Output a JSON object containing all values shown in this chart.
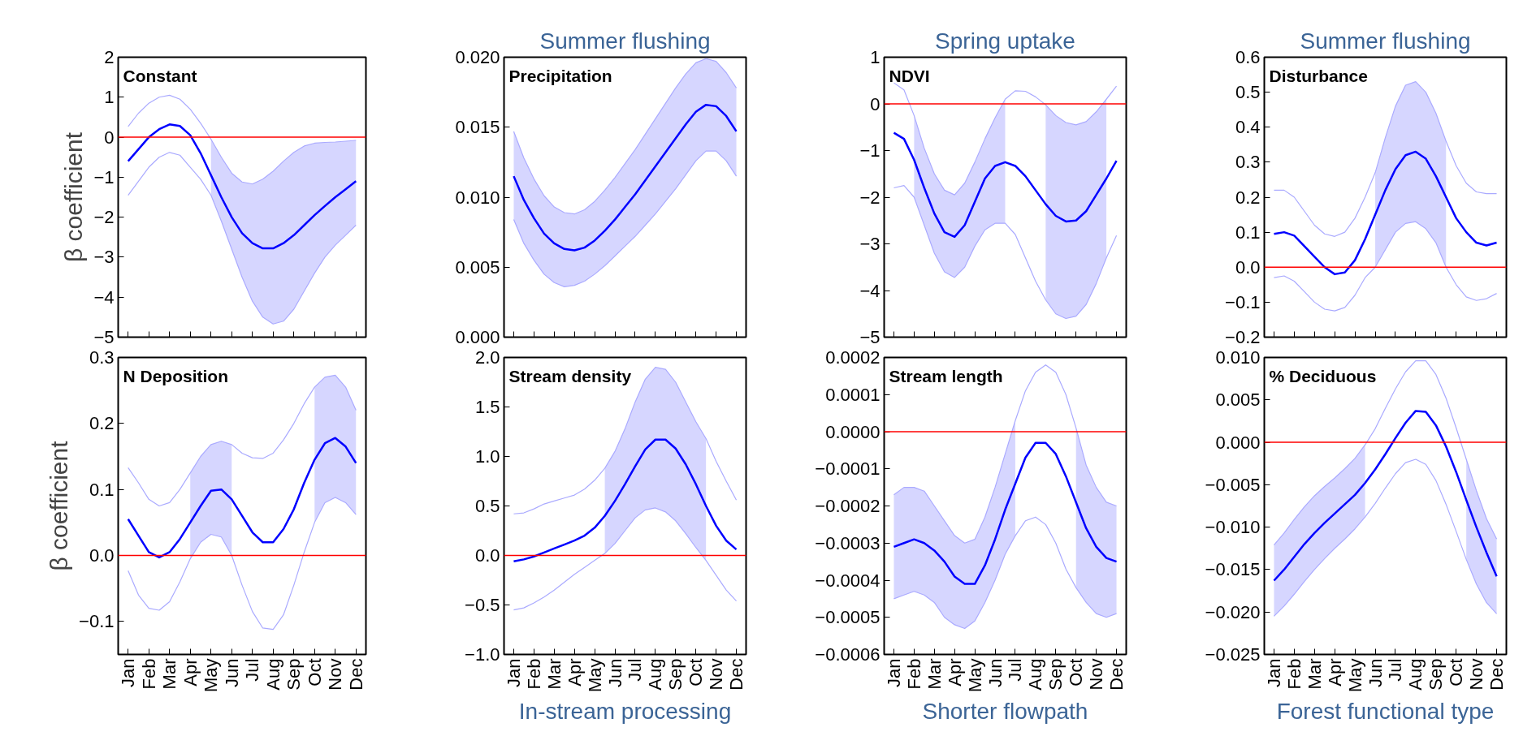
{
  "chart_data": [
    {
      "type": "line",
      "title": "Constant",
      "ylabel": "β coefficient",
      "tick_labels": "y",
      "grid": false,
      "categories": [
        null,
        null,
        null,
        null,
        null,
        null,
        null,
        null,
        null,
        null,
        null,
        null,
        null,
        null,
        null,
        null,
        null,
        null,
        null,
        null,
        null,
        null,
        null
      ],
      "ylim": [
        -5,
        2
      ],
      "yticks": [
        {
          "value": -5,
          "label": "−5"
        },
        {
          "value": -4,
          "label": "−4"
        },
        {
          "value": -3,
          "label": "−3"
        },
        {
          "value": -2,
          "label": "−2"
        },
        {
          "value": -1,
          "label": "−1"
        },
        0,
        1,
        2
      ],
      "series": [
        {
          "color": "#aaaaff",
          "values": [
            0.27,
            0.6,
            0.85,
            1.0,
            1.05,
            0.95,
            0.7,
            0.35,
            -0.05,
            -0.5,
            -0.9,
            -1.12,
            -1.17,
            -1.05,
            -0.85,
            -0.6,
            -0.38,
            -0.22,
            -0.15,
            -0.13,
            -0.12,
            -0.1,
            -0.08
          ]
        },
        {
          "color": "#aaaaff",
          "values": [
            -1.45,
            -1.1,
            -0.75,
            -0.5,
            -0.38,
            -0.45,
            -0.75,
            -1.05,
            -1.45,
            -2.1,
            -2.8,
            -3.5,
            -4.1,
            -4.5,
            -4.67,
            -4.6,
            -4.3,
            -3.85,
            -3.4,
            -3.0,
            -2.7,
            -2.45,
            -2.2
          ]
        },
        {
          "color": "#0000ff",
          "values": [
            -0.6,
            -0.3,
            0.0,
            0.2,
            0.32,
            0.28,
            0.05,
            -0.4,
            -0.95,
            -1.5,
            -2.0,
            -2.4,
            -2.65,
            -2.78,
            -2.78,
            -2.65,
            -2.45,
            -2.2,
            -1.95,
            -1.72,
            -1.5,
            -1.3,
            -1.1
          ],
          "upper": [
            null,
            null,
            null,
            null,
            null,
            null,
            null,
            null,
            -0.05,
            -0.5,
            -0.9,
            -1.12,
            -1.17,
            -1.05,
            -0.85,
            -0.6,
            -0.38,
            -0.22,
            -0.15,
            -0.13,
            -0.12,
            -0.1,
            -0.08
          ],
          "lower": [
            null,
            null,
            null,
            null,
            null,
            null,
            null,
            null,
            -1.45,
            -2.1,
            -2.8,
            -3.5,
            -4.1,
            -4.5,
            -4.67,
            -4.6,
            -4.3,
            -3.85,
            -3.4,
            -3.0,
            -2.7,
            -2.45,
            -2.2
          ]
        }
      ],
      "ref_lines": [
        {
          "axis": "y",
          "value": 0,
          "color": "#ff0000"
        }
      ]
    },
    {
      "type": "line",
      "title": "Precipitation",
      "subtitle": "Summer flushing",
      "tick_labels": "y",
      "grid": false,
      "categories": [
        null,
        null,
        null,
        null,
        null,
        null,
        null,
        null,
        null,
        null,
        null,
        null,
        null,
        null,
        null,
        null,
        null,
        null,
        null,
        null,
        null,
        null,
        null
      ],
      "ylim": [
        0,
        0.02
      ],
      "yticks": [
        {
          "value": 0,
          "label": "0.000"
        },
        0.005,
        {
          "value": 0.01,
          "label": "0.010"
        },
        0.015,
        {
          "value": 0.02,
          "label": "0.020"
        }
      ],
      "series": [
        {
          "color": "#aaaaff",
          "values": [
            0.0147,
            0.0128,
            0.0113,
            0.0101,
            0.0093,
            0.0089,
            0.0088,
            0.0091,
            0.0097,
            0.0105,
            0.0114,
            0.0124,
            0.0134,
            0.0145,
            0.0156,
            0.0167,
            0.0178,
            0.0188,
            0.0196,
            0.0199,
            0.0197,
            0.0189,
            0.0178
          ]
        },
        {
          "color": "#aaaaff",
          "values": [
            0.0084,
            0.0067,
            0.0055,
            0.0045,
            0.0039,
            0.0036,
            0.0037,
            0.004,
            0.0045,
            0.0051,
            0.0058,
            0.0065,
            0.0072,
            0.008,
            0.0088,
            0.0097,
            0.0106,
            0.0116,
            0.0126,
            0.0133,
            0.0133,
            0.0126,
            0.0115
          ]
        },
        {
          "color": "#0000ff",
          "values": [
            0.0115,
            0.0098,
            0.0085,
            0.0074,
            0.0067,
            0.0063,
            0.0062,
            0.0064,
            0.0069,
            0.0076,
            0.0084,
            0.0093,
            0.0102,
            0.0112,
            0.0122,
            0.0132,
            0.0142,
            0.0152,
            0.0161,
            0.0166,
            0.0165,
            0.0158,
            0.0147
          ],
          "upper": [
            0.0147,
            0.0128,
            0.0113,
            0.0101,
            0.0093,
            0.0089,
            0.0088,
            0.0091,
            0.0097,
            0.0105,
            0.0114,
            0.0124,
            0.0134,
            0.0145,
            0.0156,
            0.0167,
            0.0178,
            0.0188,
            0.0196,
            0.0199,
            0.0197,
            0.0189,
            0.0178
          ],
          "lower": [
            0.0084,
            0.0067,
            0.0055,
            0.0045,
            0.0039,
            0.0036,
            0.0037,
            0.004,
            0.0045,
            0.0051,
            0.0058,
            0.0065,
            0.0072,
            0.008,
            0.0088,
            0.0097,
            0.0106,
            0.0116,
            0.0126,
            0.0133,
            0.0133,
            0.0126,
            0.0115
          ]
        }
      ]
    },
    {
      "type": "line",
      "title": "NDVI",
      "subtitle": "Spring uptake",
      "tick_labels": "y",
      "grid": false,
      "categories": [
        null,
        null,
        null,
        null,
        null,
        null,
        null,
        null,
        null,
        null,
        null,
        null,
        null,
        null,
        null,
        null,
        null,
        null,
        null,
        null,
        null,
        null,
        null
      ],
      "ylim": [
        -5,
        1
      ],
      "yticks": [
        {
          "value": -5,
          "label": "−5"
        },
        {
          "value": -4,
          "label": "−4"
        },
        {
          "value": -3,
          "label": "−3"
        },
        {
          "value": -2,
          "label": "−2"
        },
        {
          "value": -1,
          "label": "−1"
        },
        0,
        1
      ],
      "series": [
        {
          "color": "#aaaaff",
          "values": [
            0.45,
            0.3,
            -0.25,
            -0.95,
            -1.5,
            -1.85,
            -1.95,
            -1.7,
            -1.25,
            -0.75,
            -0.3,
            0.1,
            0.28,
            0.27,
            0.15,
            -0.02,
            -0.25,
            -0.4,
            -0.45,
            -0.38,
            -0.17,
            0.1,
            0.38
          ]
        },
        {
          "color": "#aaaaff",
          "values": [
            -1.8,
            -1.75,
            -2.0,
            -2.6,
            -3.2,
            -3.6,
            -3.72,
            -3.5,
            -3.05,
            -2.7,
            -2.56,
            -2.56,
            -2.8,
            -3.3,
            -3.8,
            -4.2,
            -4.5,
            -4.6,
            -4.55,
            -4.3,
            -3.85,
            -3.3,
            -2.82
          ]
        },
        {
          "color": "#0000ff",
          "values": [
            -0.62,
            -0.75,
            -1.2,
            -1.8,
            -2.35,
            -2.75,
            -2.85,
            -2.6,
            -2.1,
            -1.6,
            -1.33,
            -1.25,
            -1.33,
            -1.55,
            -1.85,
            -2.15,
            -2.4,
            -2.52,
            -2.5,
            -2.3,
            -1.95,
            -1.6,
            -1.22
          ],
          "upper": [
            null,
            null,
            -0.25,
            -0.95,
            -1.5,
            -1.85,
            -1.95,
            -1.7,
            -1.25,
            -0.75,
            -0.3,
            0.1,
            null,
            null,
            null,
            -0.02,
            -0.25,
            -0.4,
            -0.45,
            -0.38,
            -0.17,
            0.1,
            null
          ],
          "lower": [
            null,
            null,
            -2.0,
            -2.6,
            -3.2,
            -3.6,
            -3.72,
            -3.5,
            -3.05,
            -2.7,
            -2.56,
            -2.56,
            null,
            null,
            null,
            -4.2,
            -4.5,
            -4.6,
            -4.55,
            -4.3,
            -3.85,
            -3.3,
            null
          ]
        }
      ],
      "ref_lines": [
        {
          "axis": "y",
          "value": 0,
          "color": "#ff0000"
        }
      ]
    },
    {
      "type": "line",
      "title": "Disturbance",
      "subtitle": "Summer flushing",
      "tick_labels": "y",
      "grid": false,
      "categories": [
        null,
        null,
        null,
        null,
        null,
        null,
        null,
        null,
        null,
        null,
        null,
        null,
        null,
        null,
        null,
        null,
        null,
        null,
        null,
        null,
        null,
        null,
        null
      ],
      "ylim": [
        -0.2,
        0.6
      ],
      "yticks": [
        {
          "value": -0.2,
          "label": "−0.2"
        },
        {
          "value": -0.1,
          "label": "−0.1"
        },
        {
          "value": 0,
          "label": "0.0"
        },
        0.1,
        0.2,
        0.3,
        0.4,
        0.5,
        0.6
      ],
      "series": [
        {
          "color": "#aaaaff",
          "values": [
            0.22,
            0.22,
            0.2,
            0.16,
            0.12,
            0.095,
            0.088,
            0.1,
            0.14,
            0.2,
            0.27,
            0.37,
            0.46,
            0.52,
            0.53,
            0.5,
            0.44,
            0.36,
            0.29,
            0.24,
            0.215,
            0.21,
            0.21
          ]
        },
        {
          "color": "#aaaaff",
          "values": [
            -0.03,
            -0.025,
            -0.04,
            -0.07,
            -0.1,
            -0.12,
            -0.125,
            -0.115,
            -0.08,
            -0.03,
            0.0,
            0.05,
            0.1,
            0.125,
            0.13,
            0.11,
            0.07,
            0.0,
            -0.05,
            -0.085,
            -0.095,
            -0.09,
            -0.075
          ]
        },
        {
          "color": "#0000ff",
          "values": [
            0.095,
            0.1,
            0.09,
            0.06,
            0.03,
            0.0,
            -0.02,
            -0.015,
            0.02,
            0.08,
            0.15,
            0.22,
            0.28,
            0.32,
            0.33,
            0.31,
            0.26,
            0.2,
            0.14,
            0.1,
            0.07,
            0.062,
            0.07
          ],
          "upper": [
            null,
            null,
            null,
            null,
            null,
            null,
            null,
            null,
            null,
            null,
            0.27,
            0.37,
            0.46,
            0.52,
            0.53,
            0.5,
            0.44,
            0.36,
            null,
            null,
            null,
            null,
            null
          ],
          "lower": [
            null,
            null,
            null,
            null,
            null,
            null,
            null,
            null,
            null,
            null,
            0.0,
            0.05,
            0.1,
            0.125,
            0.13,
            0.11,
            0.07,
            0.0,
            null,
            null,
            null,
            null,
            null
          ]
        }
      ],
      "ref_lines": [
        {
          "axis": "y",
          "value": 0,
          "color": "#ff0000"
        }
      ]
    },
    {
      "type": "line",
      "title": "N Deposition",
      "ylabel": "β coefficient",
      "grid": false,
      "categories": [
        "Jan",
        null,
        "Feb",
        null,
        "Mar",
        null,
        "Apr",
        null,
        "May",
        null,
        "Jun",
        null,
        "Jul",
        null,
        "Aug",
        null,
        "Sep",
        null,
        "Oct",
        null,
        "Nov",
        null,
        "Dec"
      ],
      "ylim": [
        -0.15,
        0.3
      ],
      "yticks": [
        {
          "value": -0.1,
          "label": "−0.1"
        },
        {
          "value": 0,
          "label": "0.0"
        },
        0.1,
        0.2,
        0.3
      ],
      "series": [
        {
          "color": "#aaaaff",
          "values": [
            0.133,
            0.11,
            0.085,
            0.075,
            0.08,
            0.1,
            0.125,
            0.15,
            0.168,
            0.173,
            0.168,
            0.155,
            0.148,
            0.147,
            0.155,
            0.175,
            0.2,
            0.23,
            0.255,
            0.27,
            0.273,
            0.255,
            0.22
          ]
        },
        {
          "color": "#aaaaff",
          "values": [
            -0.023,
            -0.06,
            -0.08,
            -0.083,
            -0.07,
            -0.04,
            -0.005,
            0.02,
            0.032,
            0.028,
            0.0,
            -0.045,
            -0.085,
            -0.11,
            -0.112,
            -0.09,
            -0.045,
            0.005,
            0.05,
            0.08,
            0.088,
            0.08,
            0.062
          ]
        },
        {
          "color": "#0000ff",
          "values": [
            0.055,
            0.03,
            0.005,
            -0.003,
            0.005,
            0.025,
            0.05,
            0.075,
            0.098,
            0.1,
            0.085,
            0.06,
            0.035,
            0.02,
            0.02,
            0.04,
            0.07,
            0.11,
            0.145,
            0.17,
            0.178,
            0.165,
            0.14
          ],
          "upper": [
            null,
            null,
            null,
            null,
            null,
            null,
            0.125,
            0.15,
            0.168,
            0.173,
            0.168,
            null,
            null,
            null,
            null,
            null,
            null,
            null,
            0.255,
            0.27,
            0.273,
            0.255,
            0.22
          ],
          "lower": [
            null,
            null,
            null,
            null,
            null,
            null,
            -0.005,
            0.02,
            0.032,
            0.028,
            0.0,
            null,
            null,
            null,
            null,
            null,
            null,
            null,
            0.05,
            0.08,
            0.088,
            0.08,
            0.062
          ]
        }
      ],
      "ref_lines": [
        {
          "axis": "y",
          "value": 0,
          "color": "#ff0000"
        }
      ]
    },
    {
      "type": "line",
      "title": "Stream density",
      "xlabel": "In-stream processing",
      "grid": false,
      "categories": [
        "Jan",
        null,
        "Feb",
        null,
        "Mar",
        null,
        "Apr",
        null,
        "May",
        null,
        "Jun",
        null,
        "Jul",
        null,
        "Aug",
        null,
        "Sep",
        null,
        "Oct",
        null,
        "Nov",
        null,
        "Dec"
      ],
      "ylim": [
        -1,
        2
      ],
      "yticks": [
        {
          "value": -1,
          "label": "−1.0"
        },
        {
          "value": -0.5,
          "label": "−0.5"
        },
        {
          "value": 0,
          "label": "0.0"
        },
        0.5,
        {
          "value": 1,
          "label": "1.0"
        },
        1.5,
        {
          "value": 2,
          "label": "2.0"
        }
      ],
      "series": [
        {
          "color": "#aaaaff",
          "values": [
            0.42,
            0.43,
            0.47,
            0.52,
            0.55,
            0.58,
            0.61,
            0.67,
            0.76,
            0.88,
            1.05,
            1.28,
            1.55,
            1.78,
            1.9,
            1.88,
            1.75,
            1.55,
            1.35,
            1.18,
            0.95,
            0.75,
            0.56
          ]
        },
        {
          "color": "#aaaaff",
          "values": [
            -0.55,
            -0.53,
            -0.48,
            -0.42,
            -0.35,
            -0.27,
            -0.19,
            -0.12,
            -0.05,
            0.02,
            0.12,
            0.25,
            0.38,
            0.46,
            0.48,
            0.44,
            0.35,
            0.22,
            0.08,
            -0.05,
            -0.2,
            -0.35,
            -0.46
          ]
        },
        {
          "color": "#0000ff",
          "values": [
            -0.06,
            -0.04,
            -0.01,
            0.03,
            0.07,
            0.11,
            0.15,
            0.2,
            0.28,
            0.4,
            0.55,
            0.72,
            0.9,
            1.07,
            1.17,
            1.17,
            1.08,
            0.92,
            0.72,
            0.5,
            0.3,
            0.15,
            0.06
          ],
          "upper": [
            null,
            null,
            null,
            null,
            null,
            null,
            null,
            null,
            null,
            0.88,
            1.05,
            1.28,
            1.55,
            1.78,
            1.9,
            1.88,
            1.75,
            1.55,
            1.35,
            1.18,
            null,
            null,
            null
          ],
          "lower": [
            null,
            null,
            null,
            null,
            null,
            null,
            null,
            null,
            null,
            0.02,
            0.12,
            0.25,
            0.38,
            0.46,
            0.48,
            0.44,
            0.35,
            0.22,
            0.08,
            -0.05,
            null,
            null,
            null
          ]
        }
      ],
      "ref_lines": [
        {
          "axis": "y",
          "value": 0,
          "color": "#ff0000"
        }
      ]
    },
    {
      "type": "line",
      "title": "Stream length",
      "xlabel": "Shorter flowpath",
      "grid": false,
      "categories": [
        "Jan",
        null,
        "Feb",
        null,
        "Mar",
        null,
        "Apr",
        null,
        "May",
        null,
        "Jun",
        null,
        "Jul",
        null,
        "Aug",
        null,
        "Sep",
        null,
        "Oct",
        null,
        "Nov",
        null,
        "Dec"
      ],
      "ylim": [
        -0.0006,
        0.0002
      ],
      "yticks": [
        {
          "value": -0.0006,
          "label": "−0.0006"
        },
        {
          "value": -0.0005,
          "label": "−0.0005"
        },
        {
          "value": -0.0004,
          "label": "−0.0004"
        },
        {
          "value": -0.0003,
          "label": "−0.0003"
        },
        {
          "value": -0.0002,
          "label": "−0.0002"
        },
        {
          "value": -0.0001,
          "label": "−0.0001"
        },
        {
          "value": 0,
          "label": "0.0000"
        },
        {
          "value": 0.0001,
          "label": "0.0001"
        },
        {
          "value": 0.0002,
          "label": "0.0002"
        }
      ],
      "series": [
        {
          "color": "#aaaaff",
          "values": [
            -0.00017,
            -0.00015,
            -0.00015,
            -0.00016,
            -0.0002,
            -0.00024,
            -0.00028,
            -0.0003,
            -0.00029,
            -0.00023,
            -0.00015,
            -6e-05,
            3e-05,
            0.00011,
            0.00016,
            0.00018,
            0.00016,
            0.0001,
            1e-05,
            -9e-05,
            -0.00015,
            -0.00019,
            -0.0002
          ]
        },
        {
          "color": "#aaaaff",
          "values": [
            -0.00045,
            -0.00044,
            -0.00043,
            -0.00044,
            -0.00046,
            -0.0005,
            -0.00052,
            -0.00053,
            -0.00051,
            -0.00046,
            -0.0004,
            -0.00033,
            -0.00028,
            -0.00024,
            -0.00023,
            -0.00025,
            -0.0003,
            -0.00037,
            -0.00042,
            -0.00046,
            -0.00049,
            -0.0005,
            -0.00049
          ]
        },
        {
          "color": "#0000ff",
          "values": [
            -0.00031,
            -0.0003,
            -0.00029,
            -0.0003,
            -0.00032,
            -0.00035,
            -0.00039,
            -0.00041,
            -0.00041,
            -0.00036,
            -0.00029,
            -0.00021,
            -0.00014,
            -7e-05,
            -3e-05,
            -3e-05,
            -6e-05,
            -0.00012,
            -0.00019,
            -0.00026,
            -0.00031,
            -0.00034,
            -0.00035
          ],
          "upper": [
            -0.00017,
            -0.00015,
            -0.00015,
            -0.00016,
            -0.0002,
            -0.00024,
            -0.00028,
            -0.0003,
            -0.00029,
            -0.00023,
            -0.00015,
            -6e-05,
            3e-05,
            null,
            null,
            null,
            null,
            null,
            1e-05,
            -9e-05,
            -0.00015,
            -0.00019,
            -0.0002
          ],
          "lower": [
            -0.00045,
            -0.00044,
            -0.00043,
            -0.00044,
            -0.00046,
            -0.0005,
            -0.00052,
            -0.00053,
            -0.00051,
            -0.00046,
            -0.0004,
            -0.00033,
            -0.00028,
            null,
            null,
            null,
            null,
            null,
            -0.00042,
            -0.00046,
            -0.00049,
            -0.0005,
            -0.00049
          ]
        }
      ],
      "ref_lines": [
        {
          "axis": "y",
          "value": 0,
          "color": "#ff0000"
        }
      ]
    },
    {
      "type": "line",
      "title": "% Deciduous",
      "xlabel": "Forest functional type",
      "grid": false,
      "categories": [
        "Jan",
        null,
        "Feb",
        null,
        "Mar",
        null,
        "Apr",
        null,
        "May",
        null,
        "Jun",
        null,
        "Jul",
        null,
        "Aug",
        null,
        "Sep",
        null,
        "Oct",
        null,
        "Nov",
        null,
        "Dec"
      ],
      "ylim": [
        -0.025,
        0.01
      ],
      "yticks": [
        {
          "value": -0.025,
          "label": "−0.025"
        },
        {
          "value": -0.02,
          "label": "−0.020"
        },
        {
          "value": -0.015,
          "label": "−0.015"
        },
        {
          "value": -0.01,
          "label": "−0.010"
        },
        {
          "value": -0.005,
          "label": "−0.005"
        },
        {
          "value": 0,
          "label": "0.000"
        },
        0.005,
        {
          "value": 0.01,
          "label": "0.010"
        }
      ],
      "series": [
        {
          "color": "#aaaaff",
          "values": [
            -0.0121,
            -0.0107,
            -0.0091,
            -0.0076,
            -0.0063,
            -0.0052,
            -0.0042,
            -0.0031,
            -0.0019,
            -0.0003,
            0.0016,
            0.004,
            0.0063,
            0.0083,
            0.0096,
            0.0096,
            0.008,
            0.0052,
            0.0017,
            -0.002,
            -0.0057,
            -0.009,
            -0.0114
          ]
        },
        {
          "color": "#aaaaff",
          "values": [
            -0.0205,
            -0.0193,
            -0.0179,
            -0.0164,
            -0.015,
            -0.0137,
            -0.0125,
            -0.0114,
            -0.0102,
            -0.0088,
            -0.0072,
            -0.0054,
            -0.0037,
            -0.0024,
            -0.002,
            -0.0026,
            -0.0045,
            -0.0073,
            -0.0105,
            -0.0138,
            -0.0167,
            -0.0189,
            -0.0202
          ]
        },
        {
          "color": "#0000ff",
          "values": [
            -0.0163,
            -0.015,
            -0.0135,
            -0.012,
            -0.0107,
            -0.0095,
            -0.0084,
            -0.0073,
            -0.0062,
            -0.0048,
            -0.0032,
            -0.0014,
            0.0005,
            0.0023,
            0.0037,
            0.0036,
            0.002,
            -0.0005,
            -0.0035,
            -0.0068,
            -0.01,
            -0.013,
            -0.0158
          ],
          "upper": [
            -0.0121,
            -0.0107,
            -0.0091,
            -0.0076,
            -0.0063,
            -0.0052,
            -0.0042,
            -0.0031,
            -0.0019,
            -0.0003,
            null,
            null,
            null,
            null,
            null,
            null,
            null,
            null,
            null,
            -0.002,
            -0.0057,
            -0.009,
            -0.0114
          ],
          "lower": [
            -0.0205,
            -0.0193,
            -0.0179,
            -0.0164,
            -0.015,
            -0.0137,
            -0.0125,
            -0.0114,
            -0.0102,
            -0.0088,
            null,
            null,
            null,
            null,
            null,
            null,
            null,
            null,
            null,
            -0.0138,
            -0.0167,
            -0.0189,
            -0.0202
          ]
        }
      ],
      "ref_lines": [
        {
          "axis": "y",
          "value": 0,
          "color": "#ff0000"
        }
      ]
    }
  ]
}
